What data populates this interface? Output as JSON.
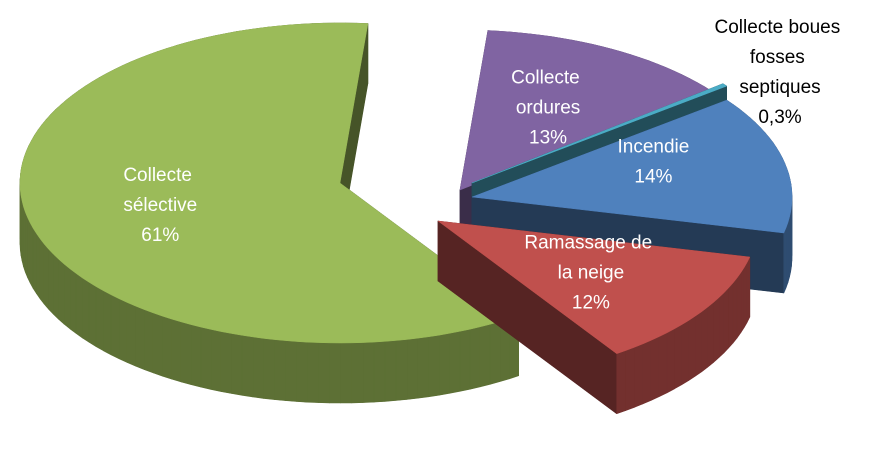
{
  "chart_data": {
    "type": "pie",
    "categories": [
      "Collecte ordures",
      "Collecte boues fosses septiques",
      "Incendie",
      "Ramassage de la neige",
      "Collecte sélective"
    ],
    "values": [
      13,
      0.3,
      14,
      12,
      61
    ],
    "value_labels": [
      "13%",
      "0,3%",
      "14%",
      "12%",
      "61%"
    ],
    "colors": [
      "#8064a2",
      "#4bacc6",
      "#4f81bd",
      "#c0504d",
      "#9bbb59"
    ]
  }
}
